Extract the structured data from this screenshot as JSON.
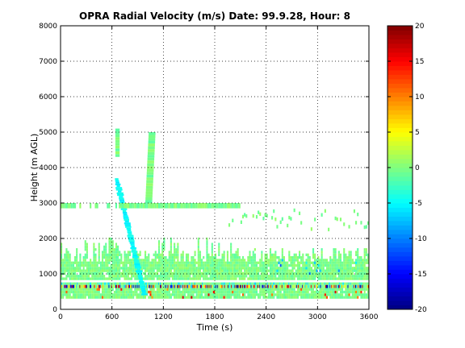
{
  "chart_data": {
    "type": "heatmap",
    "title": "OPRA Radial Velocity (m/s)  Date: 99.9.28, Hour: 8",
    "xlabel": "Time (s)",
    "ylabel": "Height (m AGL)",
    "xlim": [
      0,
      3600
    ],
    "ylim": [
      0,
      8000
    ],
    "x_ticks": [
      0,
      600,
      1200,
      1800,
      2400,
      3000,
      3600
    ],
    "y_ticks": [
      0,
      1000,
      2000,
      3000,
      4000,
      5000,
      6000,
      7000,
      8000
    ],
    "grid": true,
    "colorbar": {
      "colormap": "jet",
      "range": [
        -20,
        20
      ],
      "ticks": [
        -20,
        -15,
        -10,
        -5,
        0,
        5,
        10,
        15,
        20
      ]
    },
    "value_unit": "m/s",
    "regions": [
      {
        "desc": "near-surface layer with strong alternating values",
        "time": [
          0,
          3600
        ],
        "height": [
          600,
          750
        ],
        "value_range": [
          -20,
          20
        ]
      },
      {
        "desc": "boundary layer echoes",
        "time": [
          0,
          3600
        ],
        "height": [
          300,
          1700
        ],
        "typical_value": -1
      },
      {
        "desc": "descending negative-velocity streak",
        "time": [
          650,
          1000
        ],
        "height": [
          400,
          3700
        ],
        "typical_value": -6
      },
      {
        "desc": "band near 3 km",
        "time": [
          0,
          2100
        ],
        "height": [
          2850,
          3000
        ],
        "typical_value": -1
      },
      {
        "desc": "tall column",
        "time": [
          1000,
          1100
        ],
        "height": [
          3000,
          5000
        ],
        "typical_value": -1
      },
      {
        "desc": "sparse echoes 2-2.8 km late hour",
        "time": [
          2000,
          3600
        ],
        "height": [
          2200,
          2800
        ],
        "typical_value": -1
      }
    ]
  }
}
